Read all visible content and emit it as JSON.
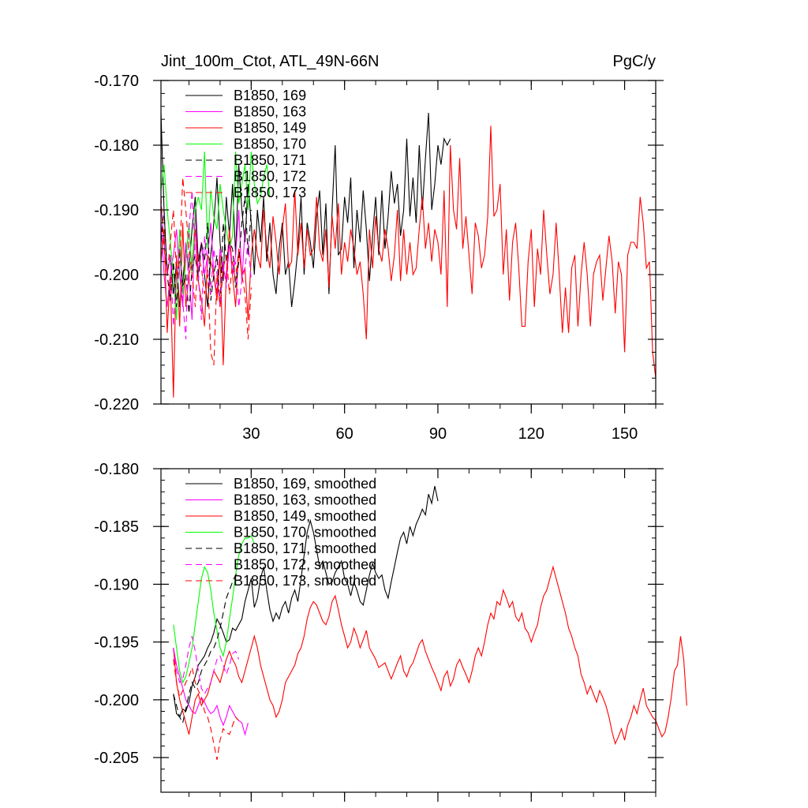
{
  "chart_data": [
    {
      "type": "line",
      "title": "Jint_100m_Ctot, ATL_49N-66N",
      "unit": "PgC/y",
      "xlim": [
        1,
        160
      ],
      "ylim": [
        -0.22,
        -0.17
      ],
      "x_ticks": [
        30,
        60,
        90,
        120,
        150
      ],
      "x_tick_labels": [
        "30",
        "60",
        "90",
        "120",
        "150"
      ],
      "y_ticks": [
        -0.22,
        -0.21,
        -0.2,
        -0.19,
        -0.18,
        -0.17
      ],
      "y_tick_labels": [
        "-0.220",
        "-0.210",
        "-0.200",
        "-0.190",
        "-0.180",
        "-0.170"
      ],
      "grid": false,
      "legend_position": "top-left",
      "series": [
        {
          "name": "B1850, 169",
          "color": "#000000",
          "dash": "solid",
          "x_start": 1,
          "values": [
            -0.175,
            -0.19,
            -0.2,
            -0.197,
            -0.203,
            -0.198,
            -0.205,
            -0.201,
            -0.196,
            -0.199,
            -0.193,
            -0.188,
            -0.198,
            -0.195,
            -0.2,
            -0.205,
            -0.197,
            -0.192,
            -0.185,
            -0.195,
            -0.201,
            -0.188,
            -0.194,
            -0.186,
            -0.197,
            -0.183,
            -0.19,
            -0.195,
            -0.186,
            -0.192,
            -0.2,
            -0.19,
            -0.195,
            -0.188,
            -0.198,
            -0.192,
            -0.2,
            -0.203,
            -0.196,
            -0.192,
            -0.2,
            -0.198,
            -0.205,
            -0.201,
            -0.196,
            -0.188,
            -0.2,
            -0.192,
            -0.195,
            -0.199,
            -0.191,
            -0.187,
            -0.197,
            -0.189,
            -0.203,
            -0.19,
            -0.18,
            -0.197,
            -0.196,
            -0.188,
            -0.192,
            -0.185,
            -0.199,
            -0.19,
            -0.195,
            -0.187,
            -0.193,
            -0.201,
            -0.194,
            -0.188,
            -0.197,
            -0.187,
            -0.196,
            -0.191,
            -0.184,
            -0.189,
            -0.186,
            -0.194,
            -0.19,
            -0.179,
            -0.191,
            -0.185,
            -0.192,
            -0.18,
            -0.19,
            -0.182,
            -0.175,
            -0.19,
            -0.186,
            -0.18,
            -0.183,
            -0.179,
            -0.18,
            -0.179
          ]
        },
        {
          "name": "B1850, 163",
          "color": "#ff00ff",
          "dash": "solid",
          "x_start": 1,
          "values": [
            -0.192,
            -0.2,
            -0.205,
            -0.2,
            -0.197,
            -0.193,
            -0.2,
            -0.205,
            -0.195,
            -0.2,
            -0.207,
            -0.19,
            -0.2,
            -0.195,
            -0.2,
            -0.197,
            -0.192,
            -0.2,
            -0.203,
            -0.196,
            -0.199,
            -0.201,
            -0.195,
            -0.2,
            -0.197,
            -0.19,
            -0.201,
            -0.193
          ]
        },
        {
          "name": "B1850, 149",
          "color": "#ff0000",
          "dash": "solid",
          "x_start": 1,
          "values": [
            -0.198,
            -0.193,
            -0.209,
            -0.2,
            -0.219,
            -0.197,
            -0.208,
            -0.192,
            -0.205,
            -0.2,
            -0.198,
            -0.193,
            -0.201,
            -0.204,
            -0.208,
            -0.197,
            -0.198,
            -0.2,
            -0.204,
            -0.197,
            -0.214,
            -0.2,
            -0.193,
            -0.2,
            -0.205,
            -0.196,
            -0.2,
            -0.199,
            -0.207,
            -0.197,
            -0.193,
            -0.197,
            -0.199,
            -0.19,
            -0.196,
            -0.199,
            -0.191,
            -0.195,
            -0.2,
            -0.193,
            -0.189,
            -0.199,
            -0.198,
            -0.187,
            -0.197,
            -0.192,
            -0.199,
            -0.193,
            -0.197,
            -0.196,
            -0.188,
            -0.196,
            -0.198,
            -0.193,
            -0.202,
            -0.191,
            -0.196,
            -0.189,
            -0.2,
            -0.195,
            -0.198,
            -0.193,
            -0.196,
            -0.2,
            -0.198,
            -0.203,
            -0.21,
            -0.193,
            -0.199,
            -0.191,
            -0.196,
            -0.198,
            -0.193,
            -0.196,
            -0.201,
            -0.197,
            -0.19,
            -0.201,
            -0.193,
            -0.2,
            -0.195,
            -0.2,
            -0.199,
            -0.193,
            -0.188,
            -0.196,
            -0.192,
            -0.198,
            -0.193,
            -0.195,
            -0.2,
            -0.187,
            -0.205,
            -0.18,
            -0.19,
            -0.193,
            -0.182,
            -0.196,
            -0.191,
            -0.197,
            -0.203,
            -0.192,
            -0.194,
            -0.199,
            -0.197,
            -0.191,
            -0.177,
            -0.191,
            -0.19,
            -0.186,
            -0.2,
            -0.193,
            -0.204,
            -0.195,
            -0.192,
            -0.199,
            -0.208,
            -0.208,
            -0.198,
            -0.193,
            -0.205,
            -0.196,
            -0.2,
            -0.19,
            -0.197,
            -0.203,
            -0.2,
            -0.192,
            -0.2,
            -0.209,
            -0.202,
            -0.209,
            -0.199,
            -0.197,
            -0.208,
            -0.2,
            -0.195,
            -0.2,
            -0.208,
            -0.2,
            -0.198,
            -0.197,
            -0.204,
            -0.199,
            -0.194,
            -0.198,
            -0.206,
            -0.198,
            -0.2,
            -0.212,
            -0.197,
            -0.195,
            -0.195,
            -0.196,
            -0.188,
            -0.192,
            -0.199,
            -0.198,
            -0.212,
            -0.216
          ]
        },
        {
          "name": "B1850, 170",
          "color": "#00ff00",
          "dash": "solid",
          "x_start": 1,
          "values": [
            -0.187,
            -0.183,
            -0.19,
            -0.195,
            -0.2,
            -0.207,
            -0.193,
            -0.203,
            -0.198,
            -0.192,
            -0.2,
            -0.19,
            -0.188,
            -0.19,
            -0.181,
            -0.196,
            -0.187,
            -0.191,
            -0.193,
            -0.186,
            -0.19,
            -0.193,
            -0.196,
            -0.194,
            -0.181,
            -0.189,
            -0.186,
            -0.183,
            -0.19,
            -0.181,
            -0.186,
            -0.189,
            -0.188,
            -0.185,
            -0.183,
            -0.188
          ]
        },
        {
          "name": "B1850, 171",
          "color": "#000000",
          "dash": "dashed",
          "x_start": 1,
          "values": [
            -0.195,
            -0.19,
            -0.2,
            -0.204,
            -0.198,
            -0.205,
            -0.196,
            -0.202,
            -0.2,
            -0.206,
            -0.199,
            -0.197,
            -0.201,
            -0.195,
            -0.198,
            -0.192,
            -0.204,
            -0.2,
            -0.197,
            -0.205,
            -0.192,
            -0.198,
            -0.195,
            -0.196,
            -0.202,
            -0.198,
            -0.192,
            -0.188,
            -0.197,
            -0.19
          ]
        },
        {
          "name": "B1850, 172",
          "color": "#ff00ff",
          "dash": "dashed",
          "x_start": 1,
          "values": [
            -0.189,
            -0.195,
            -0.2,
            -0.197,
            -0.208,
            -0.2,
            -0.196,
            -0.204,
            -0.21,
            -0.193,
            -0.187,
            -0.197,
            -0.2,
            -0.207,
            -0.194,
            -0.199,
            -0.203,
            -0.196,
            -0.2,
            -0.205,
            -0.198,
            -0.202,
            -0.195,
            -0.2,
            -0.198,
            -0.205,
            -0.201,
            -0.199,
            -0.195,
            -0.201
          ]
        },
        {
          "name": "B1850, 173",
          "color": "#ff0000",
          "dash": "dashed",
          "x_start": 1,
          "values": [
            -0.188,
            -0.196,
            -0.2,
            -0.195,
            -0.19,
            -0.2,
            -0.198,
            -0.185,
            -0.19,
            -0.196,
            -0.2,
            -0.205,
            -0.197,
            -0.199,
            -0.203,
            -0.2,
            -0.212,
            -0.214,
            -0.2,
            -0.205,
            -0.199,
            -0.197,
            -0.203,
            -0.198,
            -0.201,
            -0.196,
            -0.2,
            -0.203,
            -0.21,
            -0.202
          ]
        }
      ]
    },
    {
      "type": "line",
      "xlim": [
        1,
        160
      ],
      "ylim": [
        -0.208,
        -0.18
      ],
      "x_ticks": [
        30,
        60,
        90,
        120,
        150
      ],
      "x_tick_labels": [],
      "y_ticks": [
        -0.205,
        -0.2,
        -0.195,
        -0.19,
        -0.185,
        -0.18
      ],
      "y_tick_labels": [
        "-0.205",
        "-0.200",
        "-0.195",
        "-0.190",
        "-0.185",
        "-0.180"
      ],
      "grid": false,
      "legend_position": "top-left",
      "series": [
        {
          "name": "B1850, 169, smoothed",
          "color": "#000000",
          "dash": "solid",
          "x_start": 5,
          "values": [
            -0.1995,
            -0.2012,
            -0.2015,
            -0.2008,
            -0.201,
            -0.2002,
            -0.1988,
            -0.198,
            -0.197,
            -0.1966,
            -0.1962,
            -0.1955,
            -0.195,
            -0.1942,
            -0.193,
            -0.1935,
            -0.1942,
            -0.195,
            -0.1948,
            -0.1938,
            -0.194,
            -0.1935,
            -0.193,
            -0.1915,
            -0.1905,
            -0.1895,
            -0.192,
            -0.1912,
            -0.1895,
            -0.1885,
            -0.1905,
            -0.1922,
            -0.1932,
            -0.1925,
            -0.193,
            -0.192,
            -0.1915,
            -0.1925,
            -0.1912,
            -0.1905,
            -0.1915,
            -0.1895,
            -0.1875,
            -0.1855,
            -0.1845,
            -0.1855,
            -0.187,
            -0.1885,
            -0.188,
            -0.189,
            -0.19,
            -0.1898,
            -0.189,
            -0.1885,
            -0.188,
            -0.1895,
            -0.19,
            -0.191,
            -0.1898,
            -0.1905,
            -0.1915,
            -0.1918,
            -0.1905,
            -0.1892,
            -0.1882,
            -0.189,
            -0.1895,
            -0.1892,
            -0.1905,
            -0.1912,
            -0.1898,
            -0.1885,
            -0.1872,
            -0.186,
            -0.1855,
            -0.1865,
            -0.185,
            -0.1858,
            -0.1848,
            -0.1842,
            -0.1835,
            -0.184,
            -0.1822,
            -0.183,
            -0.1815,
            -0.1828
          ]
        },
        {
          "name": "B1850, 163, smoothed",
          "color": "#ff00ff",
          "dash": "solid",
          "x_start": 5,
          "values": [
            -0.1955,
            -0.197,
            -0.198,
            -0.199,
            -0.2,
            -0.2005,
            -0.201,
            -0.2012,
            -0.2005,
            -0.1998,
            -0.2002,
            -0.2008,
            -0.2012,
            -0.201,
            -0.2005,
            -0.2015,
            -0.2022,
            -0.2015,
            -0.2005,
            -0.201,
            -0.2015,
            -0.2018,
            -0.202,
            -0.203,
            -0.202
          ]
        },
        {
          "name": "B1850, 149, smoothed",
          "color": "#ff0000",
          "dash": "solid",
          "x_start": 5,
          "values": [
            -0.1955,
            -0.1985,
            -0.2,
            -0.201,
            -0.202,
            -0.203,
            -0.2015,
            -0.2,
            -0.1995,
            -0.2005,
            -0.2,
            -0.1995,
            -0.1985,
            -0.1975,
            -0.198,
            -0.1985,
            -0.1975,
            -0.1965,
            -0.1958,
            -0.1965,
            -0.197,
            -0.198,
            -0.1985,
            -0.1975,
            -0.1965,
            -0.1955,
            -0.1945,
            -0.1955,
            -0.197,
            -0.198,
            -0.199,
            -0.2,
            -0.2005,
            -0.2015,
            -0.201,
            -0.2,
            -0.1985,
            -0.198,
            -0.1975,
            -0.197,
            -0.196,
            -0.1955,
            -0.1945,
            -0.193,
            -0.192,
            -0.1915,
            -0.1918,
            -0.1925,
            -0.1932,
            -0.1935,
            -0.1928,
            -0.1915,
            -0.191,
            -0.1922,
            -0.1935,
            -0.1945,
            -0.1955,
            -0.195,
            -0.1938,
            -0.1945,
            -0.1955,
            -0.1948,
            -0.194,
            -0.1955,
            -0.196,
            -0.1965,
            -0.1972,
            -0.197,
            -0.1968,
            -0.1975,
            -0.1982,
            -0.1975,
            -0.1968,
            -0.1962,
            -0.1975,
            -0.198,
            -0.1972,
            -0.1968,
            -0.196,
            -0.1952,
            -0.1948,
            -0.1958,
            -0.1965,
            -0.1972,
            -0.1978,
            -0.1985,
            -0.1992,
            -0.198,
            -0.1975,
            -0.1988,
            -0.1982,
            -0.197,
            -0.1965,
            -0.1972,
            -0.1978,
            -0.1985,
            -0.1975,
            -0.1962,
            -0.1955,
            -0.1962,
            -0.195,
            -0.1935,
            -0.1925,
            -0.193,
            -0.1915,
            -0.1918,
            -0.1905,
            -0.1912,
            -0.192,
            -0.1915,
            -0.1928,
            -0.1932,
            -0.1925,
            -0.1938,
            -0.1942,
            -0.195,
            -0.1942,
            -0.1935,
            -0.192,
            -0.191,
            -0.1905,
            -0.1895,
            -0.1885,
            -0.1895,
            -0.1905,
            -0.1915,
            -0.1925,
            -0.1938,
            -0.1945,
            -0.1955,
            -0.1962,
            -0.1978,
            -0.1985,
            -0.1995,
            -0.1988,
            -0.1995,
            -0.2002,
            -0.1992,
            -0.1998,
            -0.2005,
            -0.2015,
            -0.2028,
            -0.2038,
            -0.2032,
            -0.2025,
            -0.2035,
            -0.2022,
            -0.2015,
            -0.2005,
            -0.2012,
            -0.2,
            -0.199,
            -0.2005,
            -0.201,
            -0.2015,
            -0.2018,
            -0.2025,
            -0.2032,
            -0.2028,
            -0.2015,
            -0.1998,
            -0.1975,
            -0.197,
            -0.1945,
            -0.1965,
            -0.2005
          ]
        },
        {
          "name": "B1850, 170, smoothed",
          "color": "#00ff00",
          "dash": "solid",
          "x_start": 5,
          "values": [
            -0.1935,
            -0.1955,
            -0.1975,
            -0.1985,
            -0.198,
            -0.1968,
            -0.1955,
            -0.1935,
            -0.1915,
            -0.1895,
            -0.1885,
            -0.189,
            -0.1905,
            -0.1925,
            -0.194,
            -0.1955,
            -0.1962,
            -0.195,
            -0.193,
            -0.1912,
            -0.1892,
            -0.1875,
            -0.1865,
            -0.186,
            -0.186,
            -0.1858,
            -0.1865
          ]
        },
        {
          "name": "B1850, 171, smoothed",
          "color": "#000000",
          "dash": "dashed",
          "x_start": 5,
          "values": [
            -0.1995,
            -0.2005,
            -0.2015,
            -0.202,
            -0.2008,
            -0.1995,
            -0.1985,
            -0.199,
            -0.1985,
            -0.1975,
            -0.197,
            -0.1965,
            -0.1958,
            -0.1955,
            -0.1948,
            -0.1938,
            -0.1925,
            -0.1912,
            -0.1905,
            -0.1898,
            -0.1892,
            -0.189
          ]
        },
        {
          "name": "B1850, 172, smoothed",
          "color": "#ff00ff",
          "dash": "dashed",
          "x_start": 5,
          "values": [
            -0.1955,
            -0.1975,
            -0.1985,
            -0.1982,
            -0.197,
            -0.1955,
            -0.1945,
            -0.1958,
            -0.1975,
            -0.199,
            -0.1995,
            -0.199,
            -0.1985,
            -0.1975,
            -0.1965,
            -0.1962,
            -0.197,
            -0.1978,
            -0.197,
            -0.196,
            -0.1958,
            -0.1965
          ]
        },
        {
          "name": "B1850, 173, smoothed",
          "color": "#ff0000",
          "dash": "dashed",
          "x_start": 5,
          "values": [
            -0.1965,
            -0.1985,
            -0.1998,
            -0.1992,
            -0.1985,
            -0.198,
            -0.1972,
            -0.1985,
            -0.1992,
            -0.1998,
            -0.201,
            -0.2015,
            -0.2025,
            -0.2038,
            -0.2052,
            -0.2035,
            -0.2025,
            -0.2028,
            -0.203,
            -0.2022,
            -0.2015,
            -0.2018
          ]
        }
      ]
    }
  ]
}
